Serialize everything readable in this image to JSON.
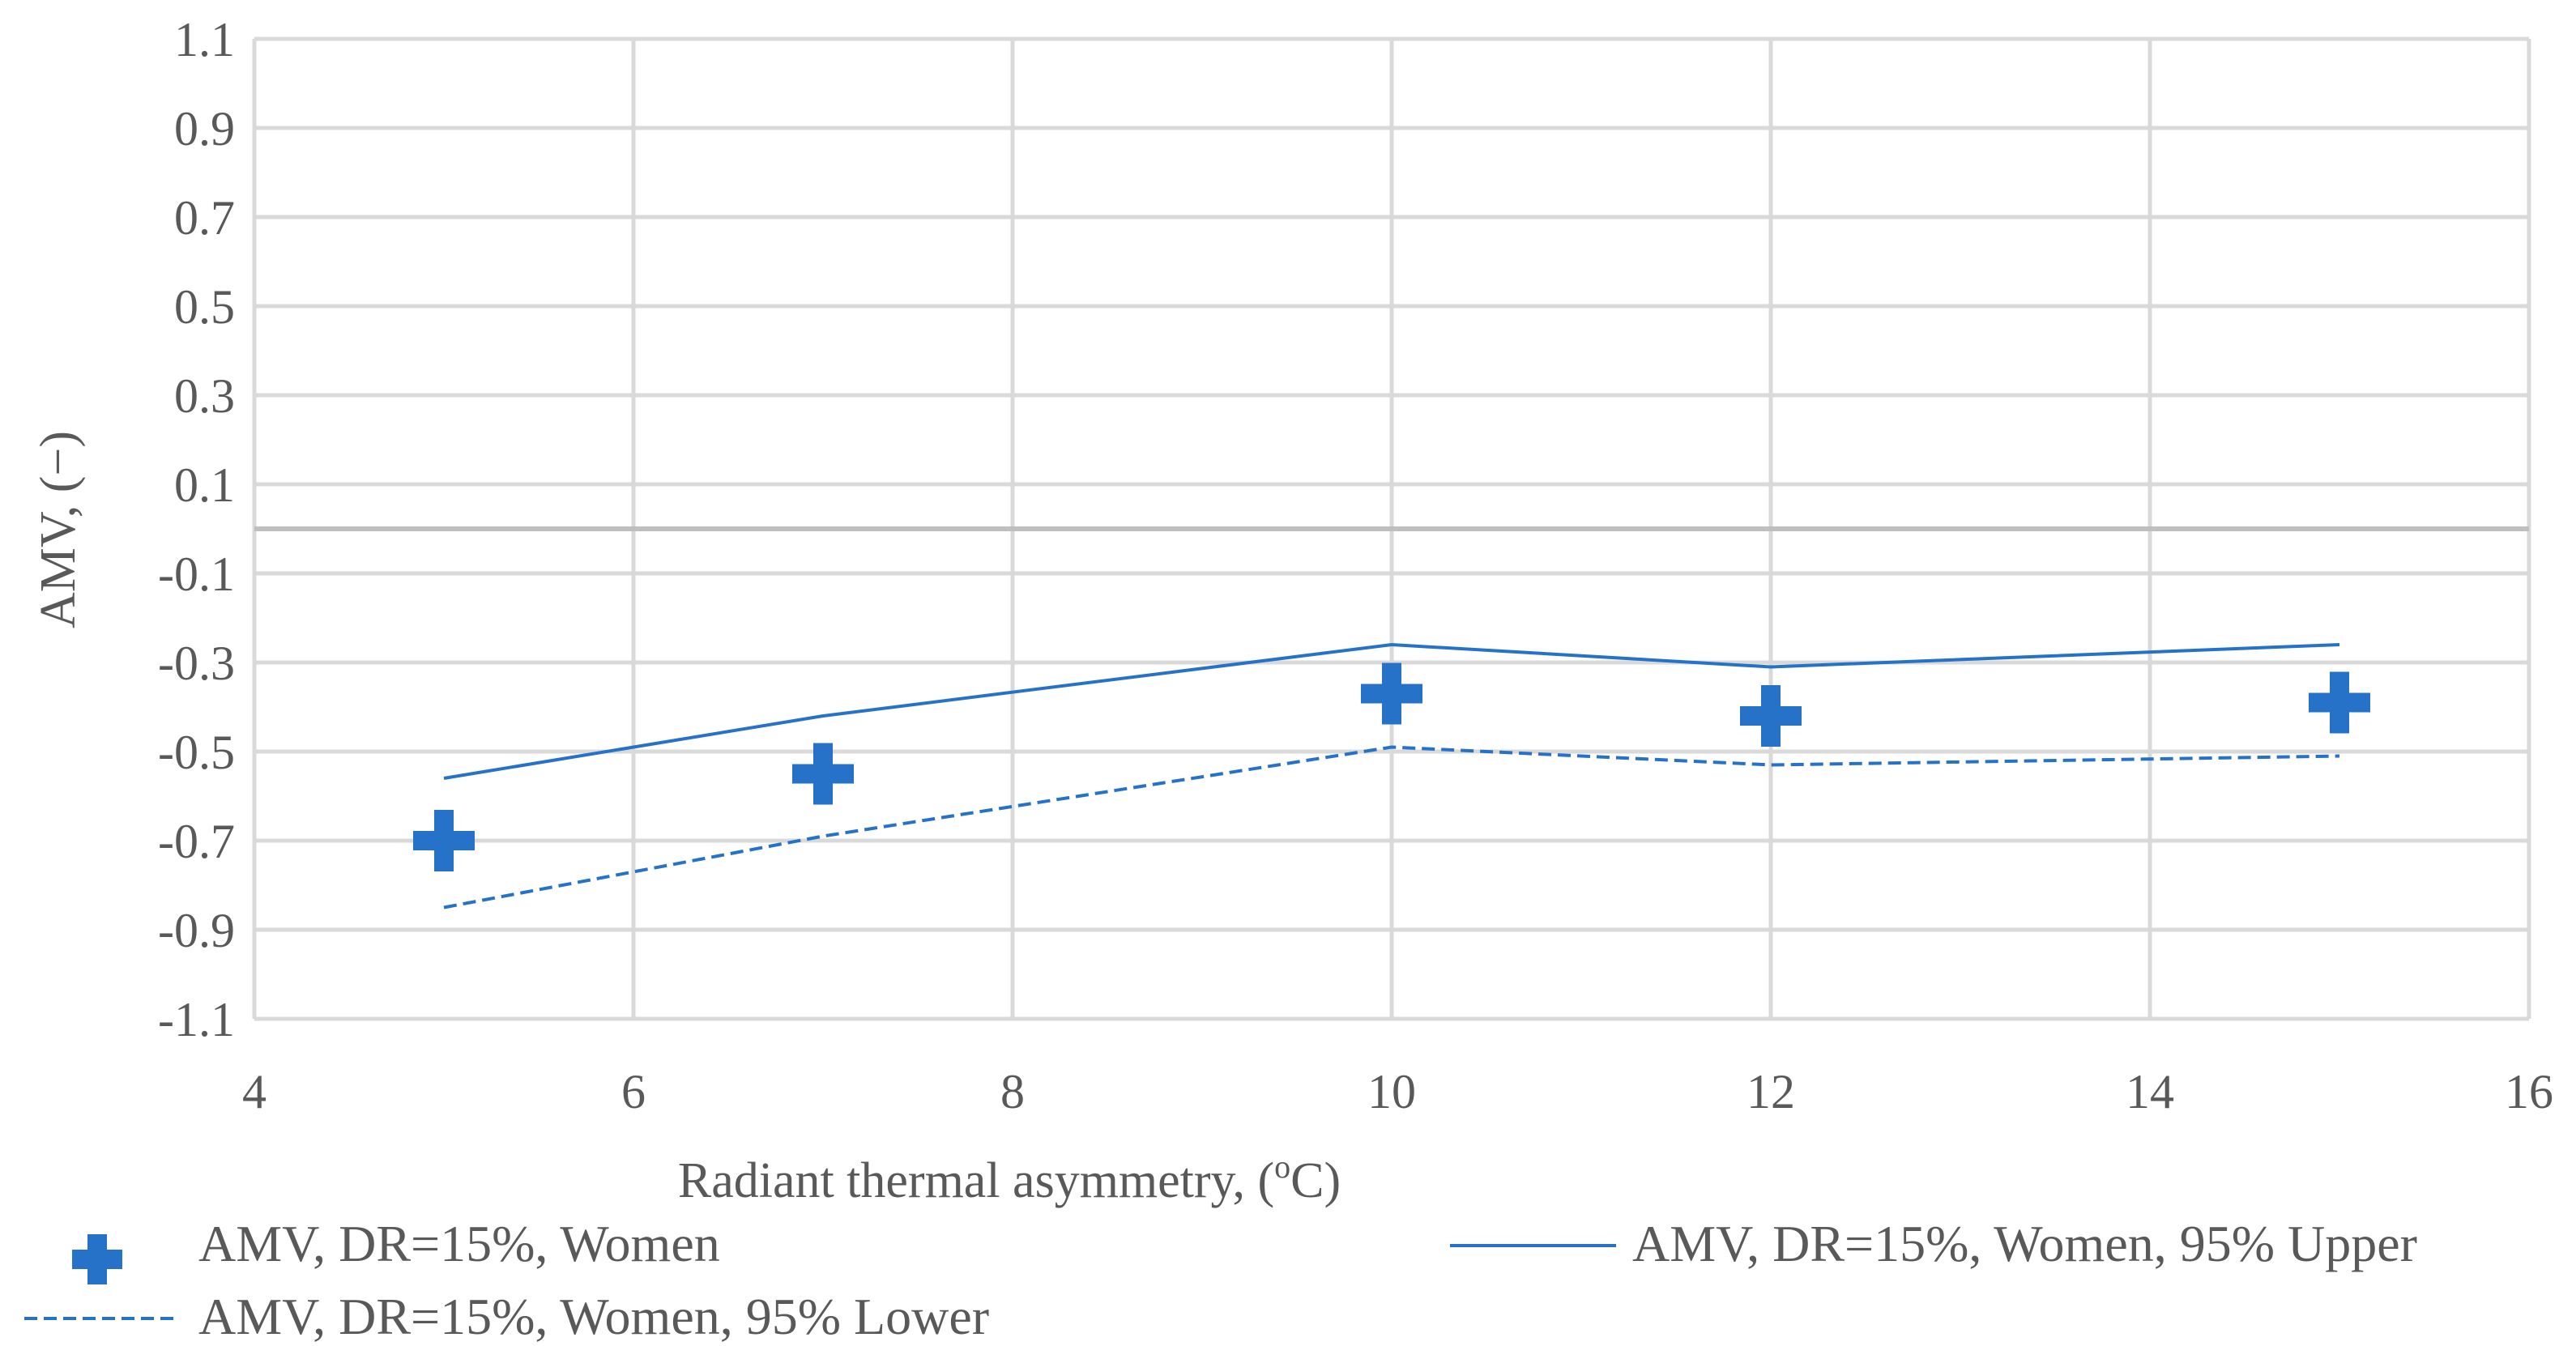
{
  "chart_data": {
    "type": "scatter",
    "xlabel": "Radiant thermal asymmetry, (",
    "xlabel_sup": "o",
    "xlabel_unit": "C)",
    "ylabel": "AMV, (−)",
    "xlim": [
      4,
      16
    ],
    "ylim": [
      -1.1,
      1.1
    ],
    "x_ticks": [
      "4",
      "6",
      "8",
      "10",
      "12",
      "14",
      "16"
    ],
    "y_ticks": [
      "1.1",
      "0.9",
      "0.7",
      "0.5",
      "0.3",
      "0.1",
      "-0.1",
      "-0.3",
      "-0.5",
      "-0.7",
      "-0.9",
      "-1.1"
    ],
    "grid": true,
    "zero_line": 0,
    "legend_position": "bottom",
    "accent_color": "#2672C9",
    "series": [
      {
        "name": "AMV, DR=15%, Women",
        "style": "markers-plus",
        "x": [
          5,
          7,
          10,
          12,
          15
        ],
        "y": [
          -0.7,
          -0.55,
          -0.37,
          -0.42,
          -0.39
        ]
      },
      {
        "name": "AMV, DR=15%, Women, 95% Upper",
        "style": "solid-line",
        "x": [
          5,
          7,
          10,
          12,
          15
        ],
        "y": [
          -0.56,
          -0.42,
          -0.26,
          -0.31,
          -0.26
        ]
      },
      {
        "name": "AMV, DR=15%, Women,  95% Lower",
        "style": "dashed-line",
        "x": [
          5,
          7,
          10,
          12,
          15
        ],
        "y": [
          -0.85,
          -0.69,
          -0.49,
          -0.53,
          -0.51
        ]
      }
    ]
  }
}
